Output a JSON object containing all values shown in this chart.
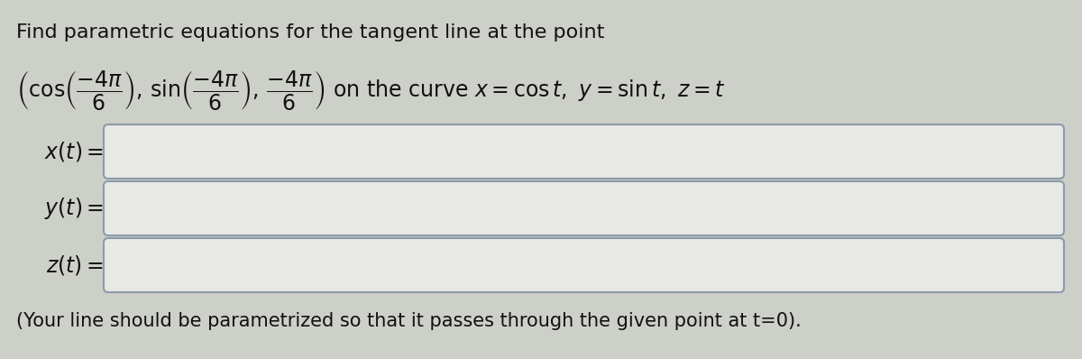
{
  "background_color": "#cdd0c8",
  "box_color": "#e8e9e4",
  "box_border": "#8a9aaa",
  "text_color": "#111111",
  "title": "Find parametric equations for the tangent line at the point",
  "line2_left": "(cos(",
  "frac1": "-4\\pi",
  "denom": "6",
  "footer": "(Your line should be parametrized so that it passes through the given point at t=0).",
  "font_size_title": 16,
  "font_size_math": 17,
  "font_size_label": 17,
  "font_size_footer": 15
}
